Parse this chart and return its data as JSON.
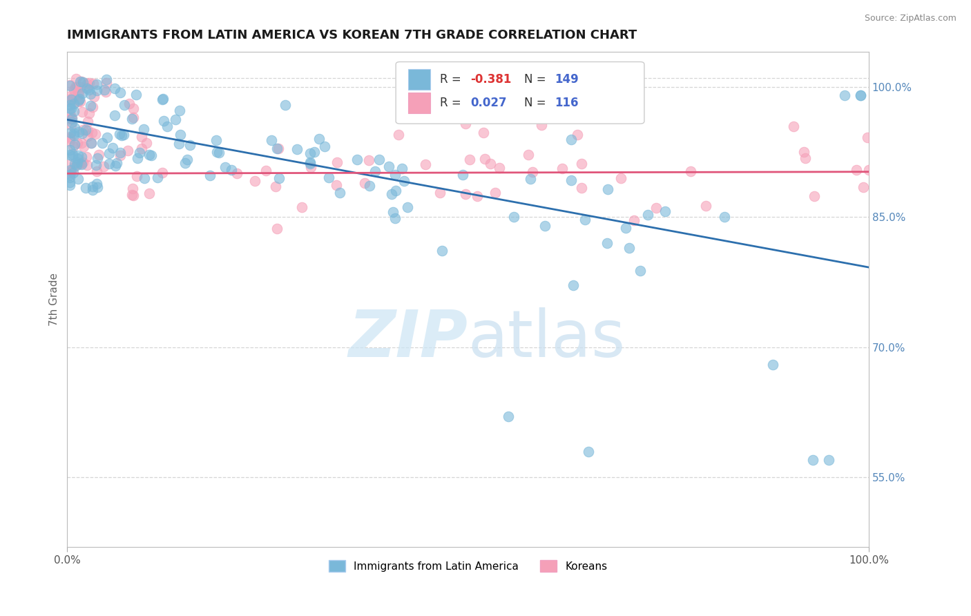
{
  "title": "IMMIGRANTS FROM LATIN AMERICA VS KOREAN 7TH GRADE CORRELATION CHART",
  "source": "Source: ZipAtlas.com",
  "ylabel": "7th Grade",
  "ytick_positions_right": [
    0.55,
    0.7,
    0.85,
    1.0
  ],
  "xmin": 0.0,
  "xmax": 1.0,
  "ymin": 0.47,
  "ymax": 1.04,
  "blue_R": -0.381,
  "blue_N": 149,
  "pink_R": 0.027,
  "pink_N": 116,
  "blue_color": "#7ab8d9",
  "pink_color": "#f5a0b8",
  "blue_line_color": "#2c6fad",
  "pink_line_color": "#e0557a",
  "legend_label_blue": "Immigrants from Latin America",
  "legend_label_pink": "Koreans",
  "watermark_zip": "ZIP",
  "watermark_atlas": "atlas",
  "background_color": "#ffffff",
  "grid_color": "#cccccc",
  "blue_trend_x": [
    0.0,
    1.0
  ],
  "blue_trend_y": [
    0.962,
    0.792
  ],
  "pink_trend_x": [
    0.0,
    1.0
  ],
  "pink_trend_y": [
    0.9,
    0.902
  ]
}
